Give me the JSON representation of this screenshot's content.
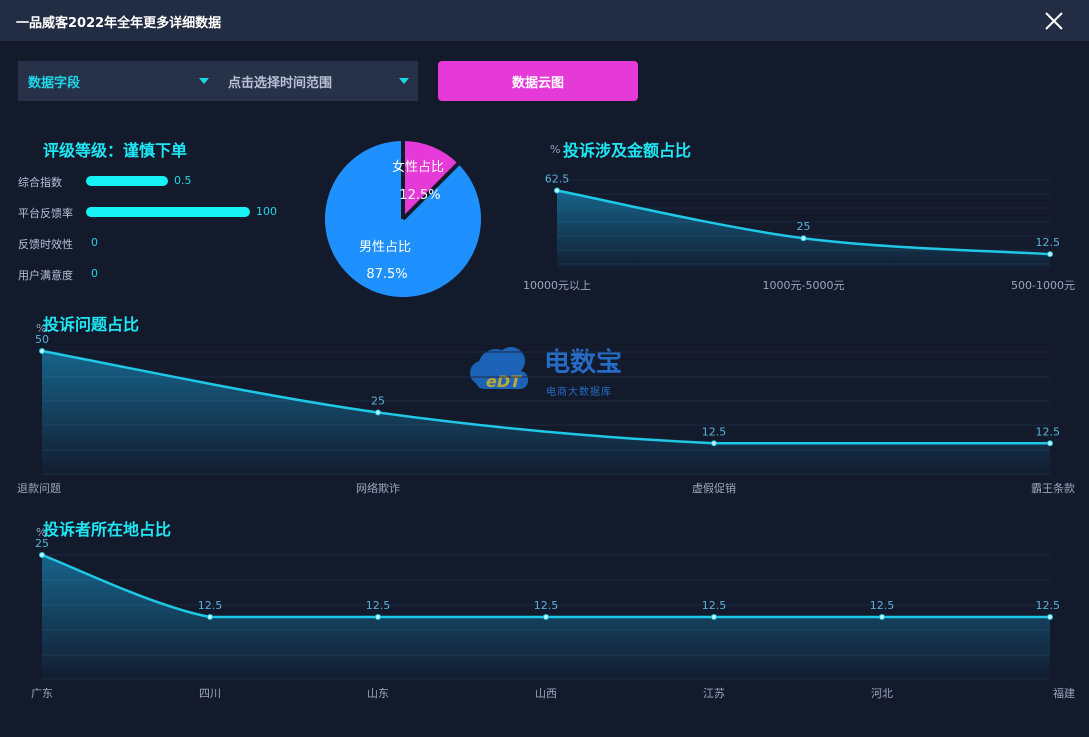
{
  "header": {
    "title": "一品威客2022年全年更多详细数据"
  },
  "filters": {
    "field_select": "数据字段",
    "time_select": "点击选择时间范围",
    "cloud_button": "数据云图"
  },
  "rating": {
    "title": "评级等级：谨慎下单",
    "items": [
      {
        "label": "综合指数",
        "value": "0.5",
        "level": 0.5
      },
      {
        "label": "平台反馈率",
        "value": "100",
        "level": 1
      },
      {
        "label": "反馈时效性",
        "value": "0",
        "level": 0
      },
      {
        "label": "用户满意度",
        "value": "0",
        "level": 0
      }
    ]
  },
  "gender_pie": {
    "female_label": "女性占比",
    "female_value": "12.5%",
    "male_label": "男性占比",
    "male_value": "87.5%",
    "female_pct": 12.5,
    "male_pct": 87.5,
    "colors": {
      "female": "#e53ad8",
      "male": "#1e90ff"
    }
  },
  "watermark": {
    "name": "电数宝",
    "sub": "电商大数据库",
    "logo_text": "eDT"
  },
  "chart_data": [
    {
      "type": "area",
      "title": "投诉涉及金额占比",
      "ylabel": "%",
      "categories": [
        "10000元以上",
        "1000元-5000元",
        "500-1000元"
      ],
      "values": [
        62.5,
        25,
        12.5
      ],
      "ylim": [
        0,
        70
      ]
    },
    {
      "type": "area",
      "title": "投诉问题占比",
      "ylabel": "%",
      "categories": [
        "退款问题",
        "网络欺诈",
        "虚假促销",
        "霸王条款"
      ],
      "values": [
        50,
        25,
        12.5,
        12.5
      ],
      "ylim": [
        0,
        50
      ]
    },
    {
      "type": "area",
      "title": "投诉者所在地占比",
      "ylabel": "%",
      "categories": [
        "广东",
        "四川",
        "山东",
        "山西",
        "江苏",
        "河北",
        "福建"
      ],
      "values": [
        25,
        12.5,
        12.5,
        12.5,
        12.5,
        12.5,
        12.5
      ],
      "ylim": [
        0,
        25
      ]
    }
  ]
}
